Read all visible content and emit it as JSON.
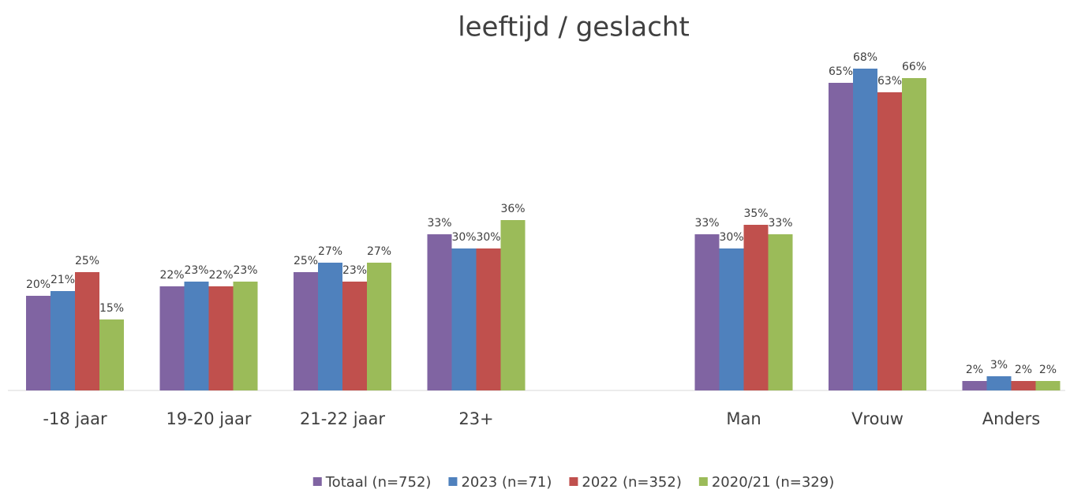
{
  "chart_data": {
    "type": "bar",
    "title": "leeftijd / geslacht",
    "categories": [
      "-18 jaar",
      "19-20 jaar",
      "21-22 jaar",
      "23+",
      null,
      "Man",
      "Vrouw",
      "Anders"
    ],
    "series": [
      {
        "name": "Totaal (n=752)",
        "color": "#8064a2",
        "values": [
          20,
          22,
          25,
          33,
          null,
          33,
          65,
          2
        ],
        "value_labels": [
          "20%",
          "22%",
          "25%",
          "33%",
          null,
          "33%",
          "65%",
          "2%"
        ]
      },
      {
        "name": "2023 (n=71)",
        "color": "#4f81bd",
        "values": [
          21,
          23,
          27,
          30,
          null,
          30,
          68,
          3
        ],
        "value_labels": [
          "21%",
          "23%",
          "27%",
          "30%",
          null,
          "30%",
          "68%",
          "3%"
        ]
      },
      {
        "name": "2022 (n=352)",
        "color": "#c0504d",
        "values": [
          25,
          22,
          23,
          30,
          null,
          35,
          63,
          2
        ],
        "value_labels": [
          "25%",
          "22%",
          "23%",
          "30%",
          null,
          "35%",
          "63%",
          "2%"
        ]
      },
      {
        "name": "2020/21 (n=329)",
        "color": "#9bbb59",
        "values": [
          15,
          23,
          27,
          36,
          null,
          33,
          66,
          2
        ],
        "value_labels": [
          "15%",
          "23%",
          "27%",
          "36%",
          null,
          "33%",
          "66%",
          "2%"
        ]
      }
    ],
    "ylim": [
      0,
      70
    ]
  }
}
